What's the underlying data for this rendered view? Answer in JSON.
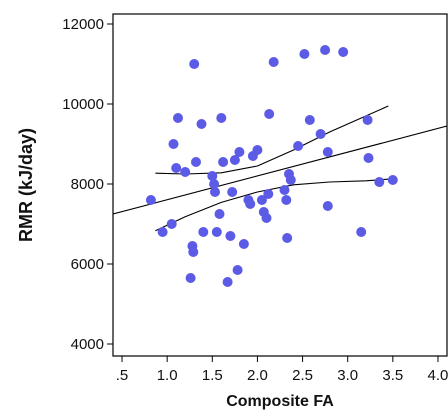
{
  "chart_data": {
    "type": "scatter",
    "xlabel": "Composite FA",
    "ylabel": "RMR (kJ/day)",
    "xlim": [
      0.4,
      4.1
    ],
    "ylim": [
      3700,
      12250
    ],
    "x_ticks": [
      {
        "value": 0.5,
        "label": ".5"
      },
      {
        "value": 1.0,
        "label": "1.0"
      },
      {
        "value": 1.5,
        "label": "1.5"
      },
      {
        "value": 2.0,
        "label": "2.0"
      },
      {
        "value": 2.5,
        "label": "2.5"
      },
      {
        "value": 3.0,
        "label": "3.0"
      },
      {
        "value": 3.5,
        "label": "3.5"
      },
      {
        "value": 4.0,
        "label": "4.0"
      }
    ],
    "y_ticks": [
      {
        "value": 4000,
        "label": "4000"
      },
      {
        "value": 6000,
        "label": "6000"
      },
      {
        "value": 8000,
        "label": "8000"
      },
      {
        "value": 10000,
        "label": "10000"
      },
      {
        "value": 12000,
        "label": "12000"
      }
    ],
    "grid": false,
    "point_color": "#5b5be6",
    "line_color": "#000000",
    "points": [
      {
        "x": 0.82,
        "y": 7600
      },
      {
        "x": 0.95,
        "y": 6800
      },
      {
        "x": 1.05,
        "y": 7000
      },
      {
        "x": 1.07,
        "y": 9000
      },
      {
        "x": 1.1,
        "y": 8400
      },
      {
        "x": 1.12,
        "y": 9650
      },
      {
        "x": 1.2,
        "y": 8300
      },
      {
        "x": 1.26,
        "y": 5650
      },
      {
        "x": 1.28,
        "y": 6450
      },
      {
        "x": 1.29,
        "y": 6300
      },
      {
        "x": 1.3,
        "y": 11000
      },
      {
        "x": 1.32,
        "y": 8550
      },
      {
        "x": 1.38,
        "y": 9500
      },
      {
        "x": 1.4,
        "y": 6800
      },
      {
        "x": 1.5,
        "y": 8200
      },
      {
        "x": 1.52,
        "y": 8000
      },
      {
        "x": 1.53,
        "y": 7800
      },
      {
        "x": 1.55,
        "y": 6800
      },
      {
        "x": 1.58,
        "y": 7250
      },
      {
        "x": 1.6,
        "y": 9650
      },
      {
        "x": 1.62,
        "y": 8550
      },
      {
        "x": 1.67,
        "y": 5550
      },
      {
        "x": 1.7,
        "y": 6700
      },
      {
        "x": 1.72,
        "y": 7800
      },
      {
        "x": 1.75,
        "y": 8600
      },
      {
        "x": 1.78,
        "y": 5850
      },
      {
        "x": 1.8,
        "y": 8800
      },
      {
        "x": 1.85,
        "y": 6500
      },
      {
        "x": 1.9,
        "y": 7600
      },
      {
        "x": 1.92,
        "y": 7500
      },
      {
        "x": 1.95,
        "y": 8700
      },
      {
        "x": 2.0,
        "y": 8850
      },
      {
        "x": 2.05,
        "y": 7600
      },
      {
        "x": 2.07,
        "y": 7300
      },
      {
        "x": 2.1,
        "y": 7150
      },
      {
        "x": 2.12,
        "y": 7750
      },
      {
        "x": 2.13,
        "y": 9750
      },
      {
        "x": 2.18,
        "y": 11050
      },
      {
        "x": 2.3,
        "y": 7850
      },
      {
        "x": 2.32,
        "y": 7600
      },
      {
        "x": 2.33,
        "y": 6650
      },
      {
        "x": 2.35,
        "y": 8250
      },
      {
        "x": 2.37,
        "y": 8100
      },
      {
        "x": 2.45,
        "y": 8950
      },
      {
        "x": 2.52,
        "y": 11250
      },
      {
        "x": 2.58,
        "y": 9600
      },
      {
        "x": 2.7,
        "y": 9250
      },
      {
        "x": 2.75,
        "y": 11350
      },
      {
        "x": 2.78,
        "y": 8800
      },
      {
        "x": 2.78,
        "y": 7450
      },
      {
        "x": 2.95,
        "y": 11300
      },
      {
        "x": 3.15,
        "y": 6800
      },
      {
        "x": 3.22,
        "y": 9600
      },
      {
        "x": 3.23,
        "y": 8650
      },
      {
        "x": 3.35,
        "y": 8050
      },
      {
        "x": 3.5,
        "y": 8100
      }
    ],
    "fit_line": [
      {
        "x": 0.4,
        "y": 7250
      },
      {
        "x": 4.1,
        "y": 9450
      }
    ],
    "ci_upper": [
      {
        "x": 0.87,
        "y": 8270
      },
      {
        "x": 1.2,
        "y": 8250
      },
      {
        "x": 1.6,
        "y": 8280
      },
      {
        "x": 2.0,
        "y": 8450
      },
      {
        "x": 2.4,
        "y": 8850
      },
      {
        "x": 2.8,
        "y": 9300
      },
      {
        "x": 3.2,
        "y": 9700
      },
      {
        "x": 3.45,
        "y": 9950
      }
    ],
    "ci_lower": [
      {
        "x": 0.87,
        "y": 6830
      },
      {
        "x": 1.2,
        "y": 7180
      },
      {
        "x": 1.6,
        "y": 7540
      },
      {
        "x": 2.0,
        "y": 7800
      },
      {
        "x": 2.4,
        "y": 7980
      },
      {
        "x": 2.8,
        "y": 8050
      },
      {
        "x": 3.2,
        "y": 8080
      },
      {
        "x": 3.45,
        "y": 8120
      }
    ]
  }
}
